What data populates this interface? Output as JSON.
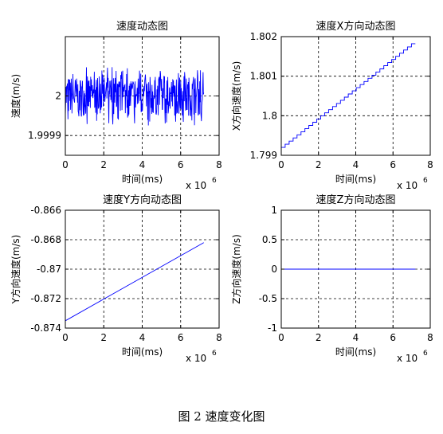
{
  "figure_caption": "图 2  速度变化图",
  "chart_data": [
    {
      "type": "line",
      "title": "速度动态图",
      "xlabel": "时间(ms)",
      "ylabel": "速度(m/s)",
      "x_exponent": "x 10",
      "x_exponent_power": "6",
      "xlim": [
        0,
        8
      ],
      "ylim": [
        1.99985,
        2.00015
      ],
      "xticks": [
        0,
        2,
        4,
        6,
        8
      ],
      "xtick_labels": [
        "0",
        "2",
        "4",
        "6",
        "8"
      ],
      "yticks": [
        1.9999,
        2.0
      ],
      "ytick_labels": [
        "1.9999",
        "2"
      ],
      "grid": true,
      "series": [
        {
          "color": "#0000ff",
          "style": "noisy",
          "x_range": [
            0,
            7.2
          ],
          "baseline": 2.0,
          "amplitude": 5e-05,
          "points": 420
        }
      ]
    },
    {
      "type": "line",
      "title": "速度X方向动态图",
      "xlabel": "时间(ms)",
      "ylabel": "X方向速度(m/s)",
      "x_exponent": "x 10",
      "x_exponent_power": "6",
      "xlim": [
        0,
        8
      ],
      "ylim": [
        1.799,
        1.802
      ],
      "xticks": [
        0,
        2,
        4,
        6,
        8
      ],
      "xtick_labels": [
        "0",
        "2",
        "4",
        "6",
        "8"
      ],
      "yticks": [
        1.799,
        1.8,
        1.801,
        1.802
      ],
      "ytick_labels": [
        "1.799",
        "1.8",
        "1.801",
        "1.802"
      ],
      "grid": true,
      "series": [
        {
          "color": "#0000ff",
          "style": "stair",
          "x": [
            0,
            7.2
          ],
          "y": [
            1.7992,
            1.80182
          ],
          "steps": 34
        }
      ]
    },
    {
      "type": "line",
      "title": "速度Y方向动态图",
      "xlabel": "时间(ms)",
      "ylabel": "Y方向速度(m/s)",
      "x_exponent": "x 10",
      "x_exponent_power": "6",
      "xlim": [
        0,
        8
      ],
      "ylim": [
        -0.874,
        -0.866
      ],
      "xticks": [
        0,
        2,
        4,
        6,
        8
      ],
      "xtick_labels": [
        "0",
        "2",
        "4",
        "6",
        "8"
      ],
      "yticks": [
        -0.874,
        -0.872,
        -0.87,
        -0.868,
        -0.866
      ],
      "ytick_labels": [
        "-0.874",
        "-0.872",
        "-0.87",
        "-0.868",
        "-0.866"
      ],
      "grid": true,
      "series": [
        {
          "color": "#0000ff",
          "style": "line",
          "x": [
            0,
            7.2
          ],
          "y": [
            -0.8735,
            -0.8682
          ]
        }
      ]
    },
    {
      "type": "line",
      "title": "速度Z方向动态图",
      "xlabel": "时间(ms)",
      "ylabel": "Z方向速度(m/s)",
      "x_exponent": "x 10",
      "x_exponent_power": "6",
      "xlim": [
        0,
        8
      ],
      "ylim": [
        -1,
        1
      ],
      "xticks": [
        0,
        2,
        4,
        6,
        8
      ],
      "xtick_labels": [
        "0",
        "2",
        "4",
        "6",
        "8"
      ],
      "yticks": [
        -1,
        -0.5,
        0,
        0.5,
        1
      ],
      "ytick_labels": [
        "-1",
        "-0.5",
        "0",
        "0.5",
        "1"
      ],
      "grid": true,
      "series": [
        {
          "color": "#0000ff",
          "style": "line",
          "x": [
            0,
            7.2
          ],
          "y": [
            0,
            0
          ]
        }
      ]
    }
  ]
}
